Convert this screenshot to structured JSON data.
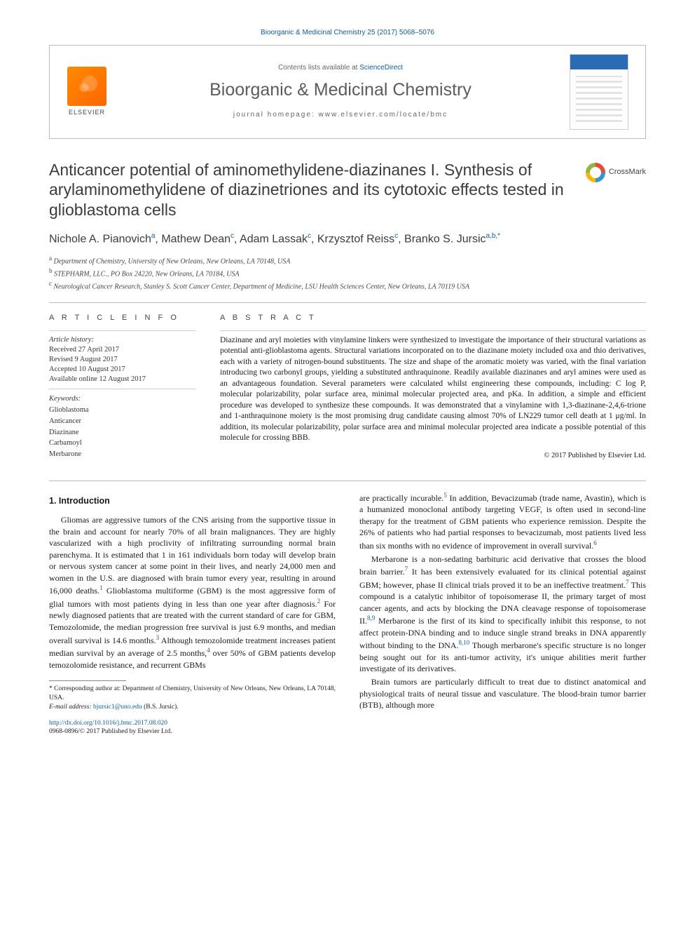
{
  "citation": "Bioorganic & Medicinal Chemistry 25 (2017) 5068–5076",
  "header": {
    "contents_prefix": "Contents lists available at ",
    "contents_link": "ScienceDirect",
    "journal": "Bioorganic & Medicinal Chemistry",
    "homepage_label": "journal homepage: ",
    "homepage_url": "www.elsevier.com/locate/bmc",
    "publisher": "ELSEVIER"
  },
  "crossmark": "CrossMark",
  "title": "Anticancer potential of aminomethylidene-diazinanes I. Synthesis of arylaminomethylidene of diazinetriones and its cytotoxic effects tested in glioblastoma cells",
  "authors_html": "Nichole A. Pianovich<sup>a</sup>, Mathew Dean<sup>c</sup>, Adam Lassak<sup>c</sup>, Krzysztof Reiss<sup>c</sup>, Branko S. Jursic<sup>a,b,*</sup>",
  "affiliations": [
    "a Department of Chemistry, University of New Orleans, New Orleans, LA 70148, USA",
    "b STEPHARM, LLC., PO Box 24220, New Orleans, LA 70184, USA",
    "c Neurological Cancer Research, Stanley S. Scott Cancer Center, Department of Medicine, LSU Health Sciences Center, New Orleans, LA 70119 USA"
  ],
  "article_info": {
    "heading": "A R T I C L E  I N F O",
    "history_label": "Article history:",
    "received": "Received 27 April 2017",
    "revised": "Revised 9 August 2017",
    "accepted": "Accepted 10 August 2017",
    "online": "Available online 12 August 2017",
    "keywords_label": "Keywords:",
    "keywords": [
      "Glioblastoma",
      "Anticancer",
      "Diazinane",
      "Carbamoyl",
      "Merbarone"
    ]
  },
  "abstract": {
    "heading": "A B S T R A C T",
    "text": "Diazinane and aryl moieties with vinylamine linkers were synthesized to investigate the importance of their structural variations as potential anti-glioblastoma agents. Structural variations incorporated on to the diazinane moiety included oxa and thio derivatives, each with a variety of nitrogen-bound substituents. The size and shape of the aromatic moiety was varied, with the final variation introducing two carbonyl groups, yielding a substituted anthraquinone. Readily available diazinanes and aryl amines were used as an advantageous foundation. Several parameters were calculated whilst engineering these compounds, including: C log P, molecular polarizability, polar surface area, minimal molecular projected area, and pKa. In addition, a simple and efficient procedure was developed to synthesize these compounds. It was demonstrated that a vinylamine with 1,3-diazinane-2,4,6-trione and 1-anthraquinone moiety is the most promising drug candidate causing almost 70% of LN229 tumor cell death at 1 μg/ml. In addition, its molecular polarizability, polar surface area and minimal molecular projected area indicate a possible potential of this molecule for crossing BBB.",
    "copyright": "© 2017 Published by Elsevier Ltd."
  },
  "body": {
    "h1": "1. Introduction",
    "p1": "Gliomas are aggressive tumors of the CNS arising from the supportive tissue in the brain and account for nearly 70% of all brain malignances. They are highly vascularized with a high proclivity of infiltrating surrounding normal brain parenchyma. It is estimated that 1 in 161 individuals born today will develop brain or nervous system cancer at some point in their lives, and nearly 24,000 men and women in the U.S. are diagnosed with brain tumor every year, resulting in around 16,000 deaths.",
    "p1b": " Glioblastoma multiforme (GBM) is the most aggressive form of glial tumors with most patients dying in less than one year after diagnosis.",
    "p1c": " For newly diagnosed patients that are treated with the current standard of care for GBM, Temozolomide, the median progression free survival is just 6.9 months, and median overall survival is 14.6 months.",
    "p1d": " Although temozolomide treatment increases patient median survival by an average of 2.5 months,",
    "p1e": " over 50% of GBM patients develop temozolomide resistance, and recurrent GBMs",
    "p2a": "are practically incurable.",
    "p2b": " In addition, Bevacizumab (trade name, Avastin), which is a humanized monoclonal antibody targeting VEGF, is often used in second-line therapy for the treatment of GBM patients who experience remission. Despite the 26% of patients who had partial responses to bevacizumab, most patients lived less than six months with no evidence of improvement in overall survival.",
    "p3a": "Merbarone is a non-sedating barbituric acid derivative that crosses the blood brain barrier.",
    "p3b": " It has been extensively evaluated for its clinical potential against GBM; however, phase II clinical trials proved it to be an ineffective treatment.",
    "p3c": " This compound is a catalytic inhibitor of topoisomerase II, the primary target of most cancer agents, and acts by blocking the DNA cleavage response of topoisomerase II.",
    "p3d": " Merbarone is the first of its kind to specifically inhibit this response, to not affect protein-DNA binding and to induce single strand breaks in DNA apparently without binding to the DNA.",
    "p3e": " Though merbarone's specific structure is no longer being sought out for its anti-tumor activity, it's unique abilities merit further investigate of its derivatives.",
    "p4": "Brain tumors are particularly difficult to treat due to distinct anatomical and physiological traits of neural tissue and vasculature. The blood-brain tumor barrier (BTB), although more"
  },
  "refs": {
    "r1": "1",
    "r2": "2",
    "r3": "3",
    "r4": "4",
    "r5": "5",
    "r6": "6",
    "r7": "7",
    "r89": "8,9",
    "r810": "8,10"
  },
  "footnotes": {
    "corr": "* Corresponding author at: Department of Chemistry, University of New Orleans, New Orleans, LA 70148, USA.",
    "email_label": "E-mail address: ",
    "email": "bjursic1@uno.edu",
    "email_suffix": " (B.S. Jursic)."
  },
  "doi": {
    "url": "http://dx.doi.org/10.1016/j.bmc.2017.08.020",
    "line2": "0968-0896/© 2017 Published by Elsevier Ltd."
  },
  "colors": {
    "link": "#0a5d9f",
    "rule": "#bbbbbb",
    "text": "#1a1a1a",
    "elsevier": "#ff6600"
  }
}
